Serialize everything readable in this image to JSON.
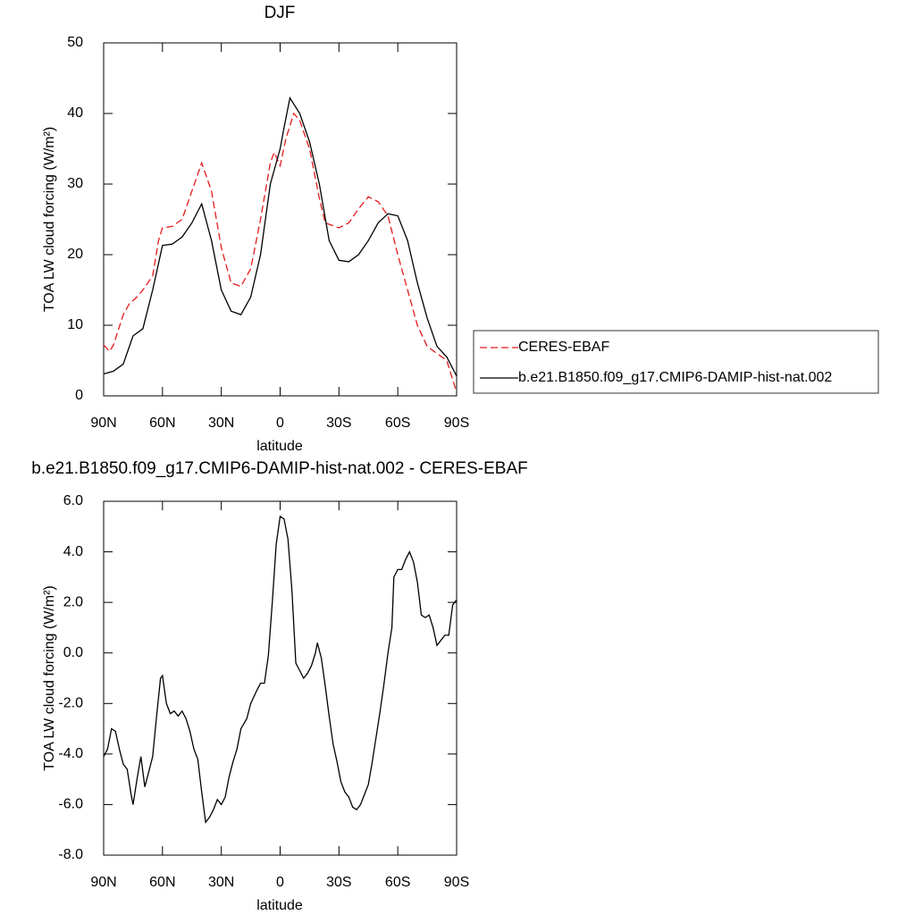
{
  "chart_data": [
    {
      "type": "line",
      "title": "DJF",
      "xlabel": "latitude",
      "ylabel": "TOA LW cloud forcing (W/m²)",
      "xlim": [
        90,
        -90
      ],
      "xticks": [
        {
          "value": 90,
          "label": "90N"
        },
        {
          "value": 60,
          "label": "60N"
        },
        {
          "value": 30,
          "label": "30N"
        },
        0,
        {
          "value": -30,
          "label": "30S"
        },
        {
          "value": -60,
          "label": "60S"
        },
        {
          "value": -90,
          "label": "90S"
        }
      ],
      "ylim": [
        0,
        50
      ],
      "yticks": [
        0,
        10,
        20,
        30,
        40,
        50
      ],
      "legend": "right",
      "series": [
        {
          "name": "CERES-EBAF",
          "color": "#e41a1c",
          "linestyle": "dashed",
          "x": [
            90,
            87,
            85,
            80,
            77,
            73,
            70,
            65,
            62,
            60,
            55,
            50,
            45,
            40,
            35,
            30,
            25,
            20,
            15,
            10,
            5,
            3,
            0,
            -3,
            -7,
            -10,
            -15,
            -20,
            -23,
            -30,
            -35,
            -40,
            -45,
            -50,
            -55,
            -60,
            -65,
            -70,
            -75,
            -80,
            -85,
            -90
          ],
          "values": [
            7.2,
            6.3,
            7.2,
            11.5,
            13,
            14,
            15,
            17,
            22,
            23.8,
            24,
            25,
            29,
            33,
            29,
            21,
            16,
            15.5,
            18,
            25,
            33,
            34.5,
            32.6,
            36.5,
            40,
            39,
            35,
            28,
            24.5,
            23.8,
            24.5,
            26.5,
            28.2,
            27.5,
            25.5,
            20,
            15,
            10,
            7,
            6,
            5,
            0.5
          ]
        },
        {
          "name": "b.e21.B1850.f09_g17.CMIP6-DAMIP-hist-nat.002",
          "color": "#000000",
          "linestyle": "solid",
          "x": [
            90,
            85,
            80,
            75,
            70,
            65,
            60,
            55,
            50,
            45,
            40,
            35,
            30,
            25,
            20,
            15,
            10,
            5,
            0,
            -2,
            -5,
            -10,
            -15,
            -20,
            -25,
            -30,
            -35,
            -40,
            -45,
            -50,
            -55,
            -60,
            -65,
            -70,
            -75,
            -80,
            -85,
            -90
          ],
          "values": [
            3.1,
            3.5,
            4.5,
            8.5,
            9.5,
            15,
            21.3,
            21.5,
            22.5,
            24.5,
            27.2,
            22,
            15,
            12,
            11.5,
            14,
            20,
            30,
            35,
            38,
            42.2,
            40,
            36,
            30,
            22,
            19.2,
            19,
            20,
            22,
            24.5,
            25.8,
            25.5,
            22,
            16,
            11,
            7,
            5.5,
            2.8
          ]
        }
      ]
    },
    {
      "type": "line",
      "title": "b.e21.B1850.f09_g17.CMIP6-DAMIP-hist-nat.002 - CERES-EBAF",
      "xlabel": "latitude",
      "ylabel": "TOA LW cloud forcing (W/m²)",
      "xlim": [
        90,
        -90
      ],
      "xticks": [
        {
          "value": 90,
          "label": "90N"
        },
        {
          "value": 60,
          "label": "60N"
        },
        {
          "value": 30,
          "label": "30N"
        },
        0,
        {
          "value": -30,
          "label": "30S"
        },
        {
          "value": -60,
          "label": "60S"
        },
        {
          "value": -90,
          "label": "90S"
        }
      ],
      "ylim": [
        -8,
        6
      ],
      "yticks": [
        {
          "value": -8,
          "label": "-8.0"
        },
        {
          "value": -6,
          "label": "-6.0"
        },
        {
          "value": -4,
          "label": "-4.0"
        },
        {
          "value": -2,
          "label": "-2.0"
        },
        {
          "value": 0,
          "label": "0.0"
        },
        {
          "value": 2,
          "label": "2.0"
        },
        {
          "value": 4,
          "label": "4.0"
        },
        {
          "value": 6,
          "label": "6.0"
        }
      ],
      "series": [
        {
          "color": "#000000",
          "linestyle": "solid",
          "x": [
            90,
            88,
            86,
            84,
            82,
            80,
            78,
            76,
            75,
            73,
            71,
            69,
            67,
            65,
            63,
            61,
            60,
            58,
            56,
            54,
            52,
            50,
            48,
            46,
            44,
            42,
            40,
            38,
            36,
            34,
            32,
            30,
            28,
            26,
            24,
            22,
            20,
            17,
            15,
            12,
            10,
            8,
            6,
            4,
            2,
            0,
            -2,
            -4,
            -6,
            -8,
            -10,
            -12,
            -14,
            -16,
            -18,
            -19,
            -21,
            -23,
            -25,
            -27,
            -29,
            -31,
            -33,
            -35,
            -37,
            -39,
            -41,
            -43,
            -45,
            -47,
            -49,
            -51,
            -53,
            -55,
            -57,
            -58,
            -60,
            -62,
            -64,
            -66,
            -68,
            -70,
            -72,
            -74,
            -76,
            -78,
            -80,
            -82,
            -84,
            -86,
            -88,
            -90
          ],
          "values": [
            -4.1,
            -3.8,
            -3.0,
            -3.1,
            -3.8,
            -4.4,
            -4.6,
            -5.6,
            -6.0,
            -5.0,
            -4.1,
            -5.3,
            -4.7,
            -4.1,
            -2.5,
            -1.0,
            -0.9,
            -2.0,
            -2.4,
            -2.3,
            -2.5,
            -2.3,
            -2.6,
            -3.1,
            -3.8,
            -4.2,
            -5.5,
            -6.7,
            -6.5,
            -6.2,
            -5.8,
            -6.0,
            -5.7,
            -4.9,
            -4.3,
            -3.8,
            -3.0,
            -2.6,
            -2.0,
            -1.5,
            -1.2,
            -1.2,
            -0.1,
            2.0,
            4.3,
            5.4,
            5.3,
            4.5,
            2.5,
            -0.4,
            -0.7,
            -1.0,
            -0.8,
            -0.5,
            0.0,
            0.4,
            -0.2,
            -1.3,
            -2.5,
            -3.6,
            -4.3,
            -5.1,
            -5.5,
            -5.7,
            -6.1,
            -6.2,
            -6.0,
            -5.6,
            -5.2,
            -4.3,
            -3.3,
            -2.3,
            -1.2,
            0.0,
            1.0,
            3.0,
            3.3,
            3.3,
            3.7,
            4.0,
            3.6,
            2.8,
            1.5,
            1.4,
            1.5,
            1.0,
            0.3,
            0.5,
            0.7,
            0.7,
            1.9,
            2.1
          ]
        }
      ]
    }
  ]
}
